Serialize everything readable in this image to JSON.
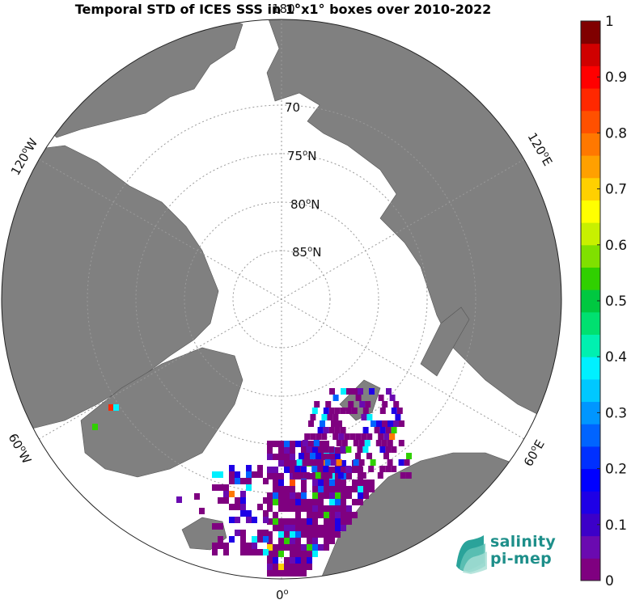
{
  "title": "Temporal STD of ICES SSS in 1°x1° boxes over 2010-2022",
  "latitude_labels": [
    {
      "text": "70",
      "sup": "",
      "suffix": ""
    },
    {
      "text": "75",
      "sup": "o",
      "suffix": "N"
    },
    {
      "text": "80",
      "sup": "o",
      "suffix": "N"
    },
    {
      "text": "85",
      "sup": "o",
      "suffix": "N"
    }
  ],
  "longitude_labels": {
    "top": {
      "text": "180",
      "sup": "o",
      "suffix": ""
    },
    "bottom": {
      "text": "0",
      "sup": "o",
      "suffix": ""
    },
    "left_upper": {
      "text": "120",
      "sup": "o",
      "suffix": "W"
    },
    "left_lower": {
      "text": "60",
      "sup": "o",
      "suffix": "W"
    },
    "right_upper": {
      "text": "120",
      "sup": "o",
      "suffix": "E"
    },
    "right_lower": {
      "text": "60",
      "sup": "o",
      "suffix": "E"
    }
  },
  "colorbar": {
    "ticks": [
      "0",
      "0.1",
      "0.2",
      "0.3",
      "0.4",
      "0.5",
      "0.6",
      "0.7",
      "0.8",
      "0.9",
      "1"
    ],
    "min": 0,
    "max": 1,
    "colors": [
      "#7f0080",
      "#6a0ab0",
      "#3c00c8",
      "#1e00e6",
      "#0000ff",
      "#0030ff",
      "#0064ff",
      "#0096ff",
      "#00c8ff",
      "#00f0ff",
      "#00f0b0",
      "#00e070",
      "#00c840",
      "#30d000",
      "#80e000",
      "#c8f000",
      "#ffff00",
      "#ffd000",
      "#ffa000",
      "#ff7800",
      "#ff5000",
      "#ff2800",
      "#ff0000",
      "#d00000",
      "#800000"
    ]
  },
  "colors": {
    "land": "#808080",
    "ocean": "#ffffff",
    "grid": "#9a9a9a"
  },
  "logo": {
    "line1": "salinity",
    "line2": "pi-mep"
  }
}
